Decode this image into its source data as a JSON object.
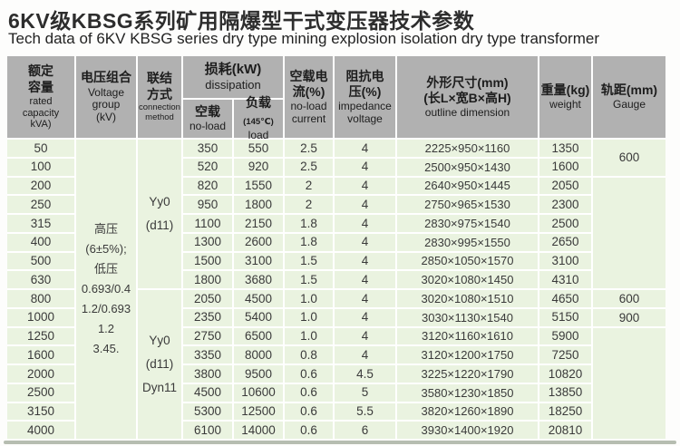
{
  "title": "6KV级KBSG系列矿用隔爆型干式变压器技术参数",
  "subtitle": "Tech data of 6KV KBSG series dry type mining explosion isolation dry type transformer",
  "table": {
    "headers": {
      "capacity": {
        "zh1": "额定",
        "zh2": "容量",
        "en": "rated capacity kVA)"
      },
      "voltage": {
        "zh": "电压组合",
        "en": "Voltage group (kV)"
      },
      "connection": {
        "zh1": "联结",
        "zh2": "方式",
        "en": "connection method"
      },
      "dissipation": {
        "zh": "损耗(kW)",
        "en": "dissipation"
      },
      "no_load": {
        "zh": "空载",
        "en": "no-load"
      },
      "load": {
        "zh": "负载",
        "note": "(145℃)",
        "en": "load"
      },
      "current": {
        "zh1": "空载电",
        "zh2": "流(%)",
        "en1": "no-load",
        "en2": "current"
      },
      "impedance": {
        "zh1": "阻抗电",
        "zh2": "压(%)",
        "en1": "impedance",
        "en2": "voltage"
      },
      "dimension": {
        "zh1": "外形尺寸(mm)",
        "zh2": "(长L×宽B×高H)",
        "en": "outline dimension"
      },
      "weight": {
        "zh": "重量(kg)",
        "en": "weight"
      },
      "gauge": {
        "zh": "轨距(mm)",
        "en": "Gauge"
      }
    },
    "merged": {
      "voltage_lines": [
        "高压",
        "(6±5%);",
        "低压",
        "0.693/0.4",
        "1.2/0.693",
        "1.2",
        "3.45."
      ],
      "connection_top": [
        "Yy0",
        "(d11)"
      ],
      "connection_bottom": [
        "Yy0",
        "(d11)",
        "Dyn11"
      ],
      "gauge_top": "600",
      "gauge_800": "600",
      "gauge_1000": "900"
    },
    "rows": [
      [
        "50",
        "350",
        "550",
        "2.5",
        "4",
        "2225×950×1160",
        "1350"
      ],
      [
        "100",
        "520",
        "920",
        "2.5",
        "4",
        "2500×950×1430",
        "1600"
      ],
      [
        "200",
        "820",
        "1550",
        "2",
        "4",
        "2640×950×1445",
        "2050"
      ],
      [
        "250",
        "950",
        "1800",
        "2",
        "4",
        "2750×965×1530",
        "2300"
      ],
      [
        "315",
        "1100",
        "2150",
        "1.8",
        "4",
        "2830×975×1540",
        "2500"
      ],
      [
        "400",
        "1300",
        "2600",
        "1.8",
        "4",
        "2830×995×1550",
        "2650"
      ],
      [
        "500",
        "1500",
        "3100",
        "1.5",
        "4",
        "2850×1050×1570",
        "3100"
      ],
      [
        "630",
        "1800",
        "3680",
        "1.5",
        "4",
        "3020×1080×1450",
        "4310"
      ],
      [
        "800",
        "2050",
        "4500",
        "1.0",
        "4",
        "3020×1080×1510",
        "4650"
      ],
      [
        "1000",
        "2350",
        "5400",
        "1.0",
        "4",
        "3030×1130×1540",
        "5150"
      ],
      [
        "1250",
        "2750",
        "6500",
        "1.0",
        "4",
        "3120×1160×1610",
        "5900"
      ],
      [
        "1600",
        "3350",
        "8000",
        "0.8",
        "4",
        "3120×1200×1750",
        "7250"
      ],
      [
        "2000",
        "3800",
        "9500",
        "0.6",
        "4.5",
        "3225×1220×1790",
        "10820"
      ],
      [
        "2500",
        "4500",
        "10600",
        "0.6",
        "5",
        "3580×1230×1850",
        "13850"
      ],
      [
        "3150",
        "5300",
        "12500",
        "0.6",
        "5.5",
        "3820×1260×1890",
        "18250"
      ],
      [
        "4000",
        "6100",
        "14000",
        "0.6",
        "6",
        "3930×1400×1920",
        "20810"
      ]
    ]
  }
}
